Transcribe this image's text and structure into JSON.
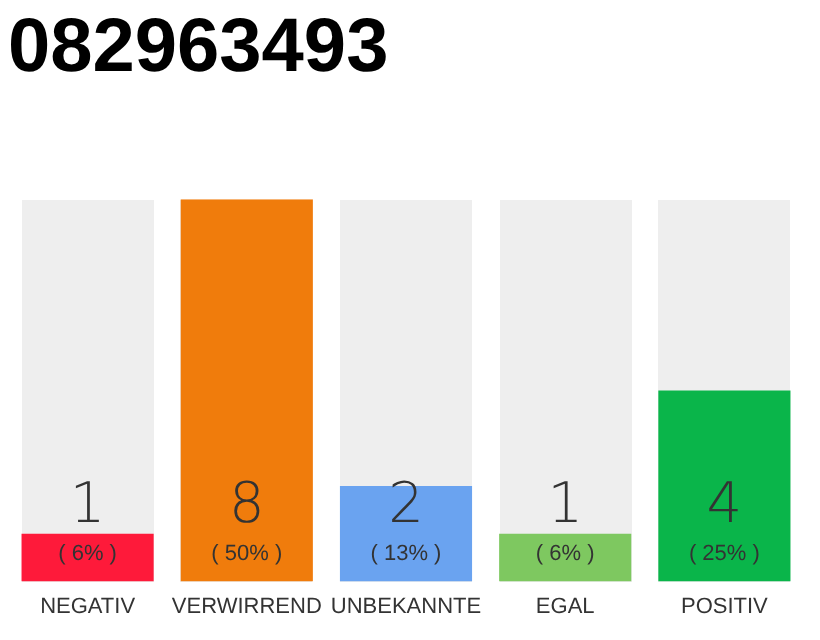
{
  "chart_data": {
    "type": "bar",
    "title": "082963493",
    "categories": [
      "NEGATIV",
      "VERWIRREND",
      "UNBEKANNTE",
      "EGAL",
      "POSITIV"
    ],
    "values": [
      1,
      8,
      2,
      1,
      4
    ],
    "colors": [
      "#fe1a3a",
      "#f07c0c",
      "#6aa3f0",
      "#7ec860",
      "#0ab54a"
    ],
    "data_labels": true,
    "grid": false,
    "legend": false,
    "tick_labels": "x",
    "annotations": [
      "( 6% )",
      "( 50% )",
      "( 13% )",
      "( 6% )",
      "( 25% )"
    ]
  }
}
